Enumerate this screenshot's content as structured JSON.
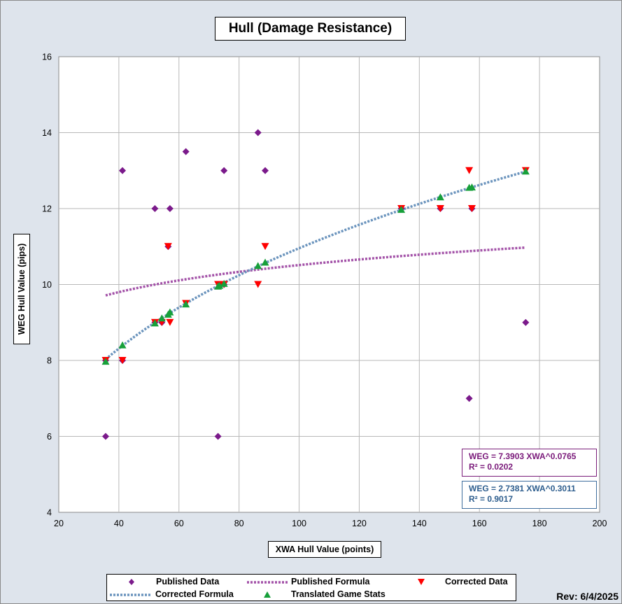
{
  "colors": {
    "published": "#7b1a8b",
    "published_formula": "#a352a8",
    "corrected": "#ff0000",
    "corrected_formula": "#6b94bd",
    "translated": "#17a03a",
    "grid": "#b8b8b8",
    "background": "#dde3eb"
  },
  "chart_data": {
    "type": "scatter",
    "title": "Hull (Damage Resistance)",
    "xlabel": "XWA Hull Value (points)",
    "ylabel": "WEG Hull Value (pips)",
    "xlim": [
      20,
      200
    ],
    "ylim": [
      4,
      16
    ],
    "x_ticks": [
      "20",
      "40",
      "60",
      "80",
      "100",
      "120",
      "140",
      "160",
      "180",
      "200"
    ],
    "y_ticks": [
      "4",
      "6",
      "8",
      "10",
      "12",
      "14",
      "16"
    ],
    "grid": true,
    "legend_position": "bottom",
    "series": [
      {
        "name": "Published Data",
        "marker": "diamond",
        "points": [
          [
            35.6,
            6
          ],
          [
            35.6,
            8
          ],
          [
            41.2,
            13
          ],
          [
            41.2,
            8
          ],
          [
            52,
            12
          ],
          [
            52,
            9
          ],
          [
            54.3,
            9
          ],
          [
            56.4,
            11
          ],
          [
            57,
            12
          ],
          [
            62.3,
            13.5
          ],
          [
            73,
            6
          ],
          [
            73.5,
            10
          ],
          [
            75,
            13
          ],
          [
            75,
            10
          ],
          [
            86.3,
            14
          ],
          [
            88.7,
            13
          ],
          [
            134,
            12
          ],
          [
            147,
            12
          ],
          [
            156.6,
            7
          ],
          [
            157.5,
            12
          ],
          [
            175.4,
            9
          ]
        ]
      },
      {
        "name": "Corrected Data",
        "marker": "triangle-down",
        "points": [
          [
            35.6,
            8
          ],
          [
            41.2,
            8
          ],
          [
            52,
            9
          ],
          [
            54.3,
            9
          ],
          [
            56.4,
            11
          ],
          [
            57,
            9
          ],
          [
            62.3,
            9.5
          ],
          [
            73,
            10
          ],
          [
            73.5,
            10
          ],
          [
            75,
            10
          ],
          [
            86.3,
            10
          ],
          [
            88.7,
            11
          ],
          [
            134,
            12
          ],
          [
            147,
            12
          ],
          [
            156.6,
            13
          ],
          [
            157.5,
            12
          ],
          [
            175.4,
            13
          ]
        ]
      },
      {
        "name": "Translated Game Stats",
        "marker": "triangle-up",
        "points": [
          [
            35.6,
            7.97
          ],
          [
            41.2,
            8.4
          ],
          [
            52,
            8.98
          ],
          [
            54.3,
            9.11
          ],
          [
            56.4,
            9.21
          ],
          [
            57,
            9.27
          ],
          [
            62.3,
            9.48
          ],
          [
            73,
            9.95
          ],
          [
            73.5,
            9.97
          ],
          [
            75,
            10.02
          ],
          [
            86.3,
            10.49
          ],
          [
            88.7,
            10.58
          ],
          [
            134,
            11.97
          ],
          [
            147,
            12.3
          ],
          [
            156.6,
            12.55
          ],
          [
            157.5,
            12.56
          ],
          [
            175.4,
            12.98
          ]
        ]
      }
    ],
    "trendlines": [
      {
        "name": "Published Formula",
        "a": 7.3903,
        "b": 0.0765,
        "x_range": [
          35.6,
          175.4
        ],
        "style": "dotted"
      },
      {
        "name": "Corrected Formula",
        "a": 2.7381,
        "b": 0.3011,
        "x_range": [
          35.6,
          175.4
        ],
        "style": "dotted"
      }
    ],
    "annotations": {
      "published_equation": "WEG = 7.3903 XWA^0.0765",
      "published_r2": "R² = 0.0202",
      "corrected_equation": "WEG = 2.7381 XWA^0.3011",
      "corrected_r2": "R² = 0.9017"
    }
  },
  "legend": {
    "published_data": "Published Data",
    "published_formula": "Published Formula",
    "corrected_data": "Corrected Data",
    "corrected_formula": "Corrected Formula",
    "translated_stats": "Translated Game Stats"
  },
  "revision": "Rev: 6/4/2025"
}
